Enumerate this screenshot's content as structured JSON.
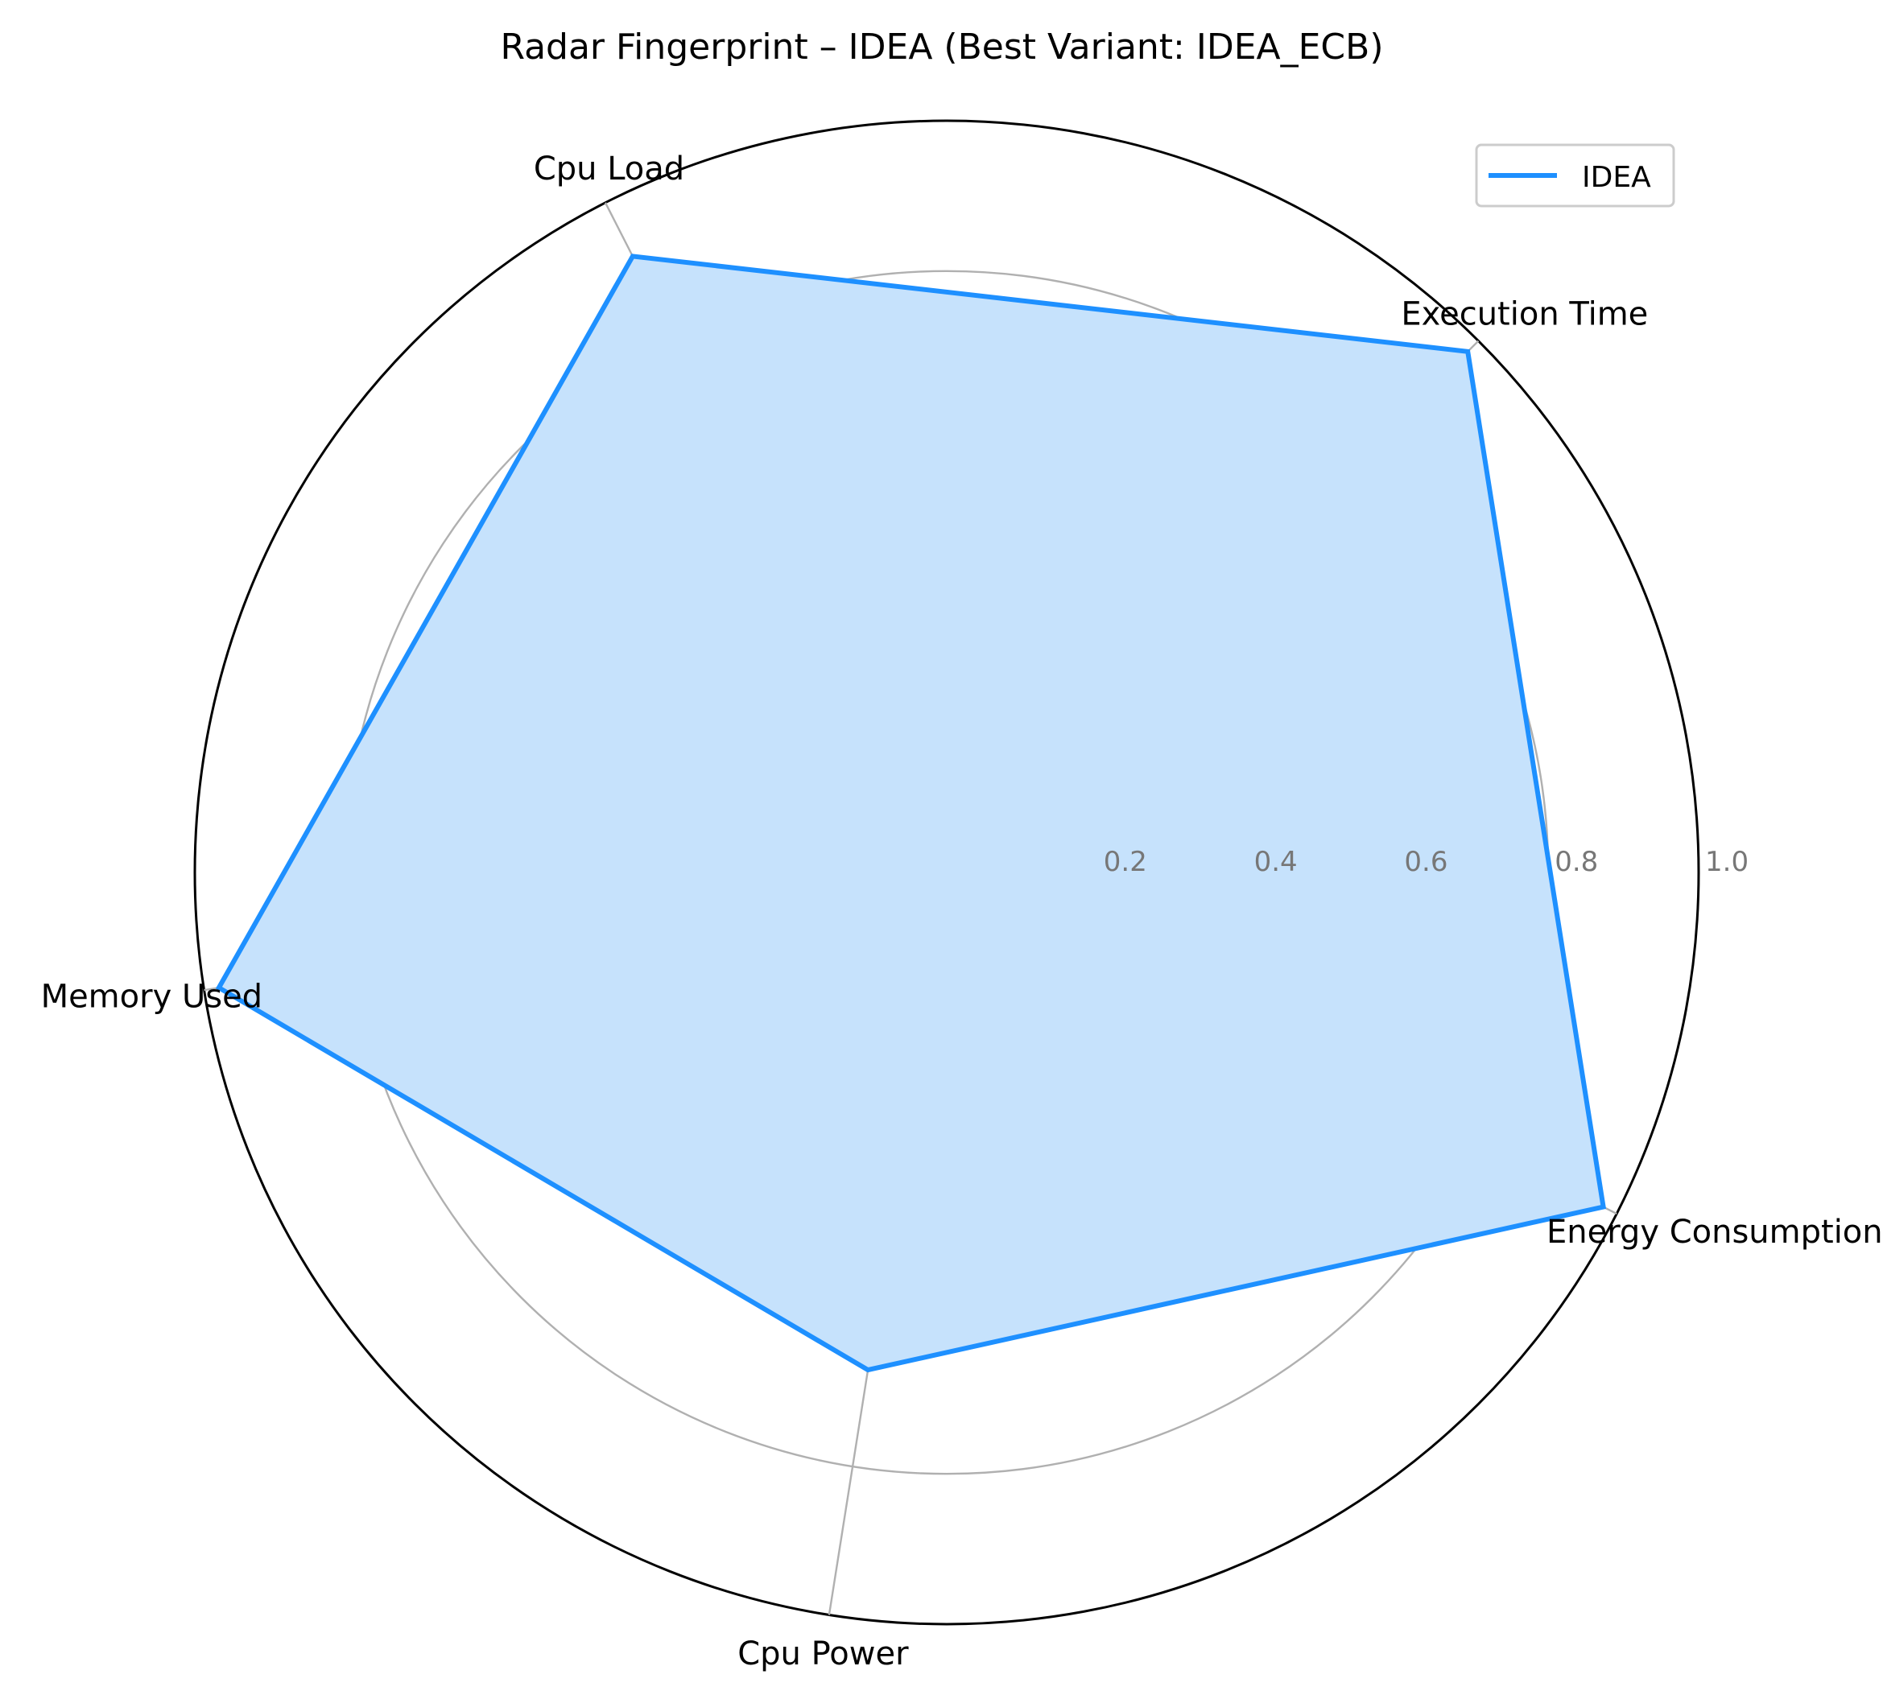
{
  "chart_data": {
    "type": "radar",
    "title": "Radar Fingerprint – IDEA (Best Variant: IDEA_ECB)",
    "axes": [
      "Execution Time",
      "Energy Consumption",
      "Cpu Power",
      "Memory Used",
      "Cpu Load"
    ],
    "series": [
      {
        "name": "IDEA",
        "values": [
          0.98,
          0.98,
          0.67,
          0.98,
          0.92
        ],
        "color": "#1e90ff",
        "fill": "#c6e2fc"
      }
    ],
    "rlim": [
      0,
      1.0
    ],
    "rticks": [
      0.2,
      0.4,
      0.6,
      0.8,
      1.0
    ],
    "rtick_labels": [
      "0.2",
      "0.4",
      "0.6",
      "0.8",
      "1.0"
    ],
    "grid": true,
    "legend_position": "top-right"
  }
}
